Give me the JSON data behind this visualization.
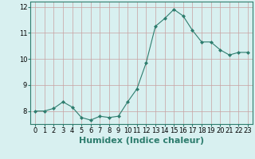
{
  "xlabel": "Humidex (Indice chaleur)",
  "x": [
    0,
    1,
    2,
    3,
    4,
    5,
    6,
    7,
    8,
    9,
    10,
    11,
    12,
    13,
    14,
    15,
    16,
    17,
    18,
    19,
    20,
    21,
    22,
    23
  ],
  "y": [
    8.0,
    8.0,
    8.1,
    8.35,
    8.15,
    7.75,
    7.65,
    7.8,
    7.75,
    7.8,
    8.35,
    8.85,
    9.85,
    11.25,
    11.55,
    11.9,
    11.65,
    11.1,
    10.65,
    10.65,
    10.35,
    10.15,
    10.25,
    10.25
  ],
  "ylim": [
    7.5,
    12.2
  ],
  "yticks": [
    8,
    9,
    10,
    11,
    12
  ],
  "xlim": [
    -0.5,
    23.5
  ],
  "line_color": "#2e7d6e",
  "marker": "D",
  "marker_size": 2,
  "bg_color": "#d8f0f0",
  "grid_color": "#c8a0a0",
  "tick_label_fontsize": 6,
  "xlabel_fontsize": 8,
  "xlabel_color": "#2e7d6e"
}
